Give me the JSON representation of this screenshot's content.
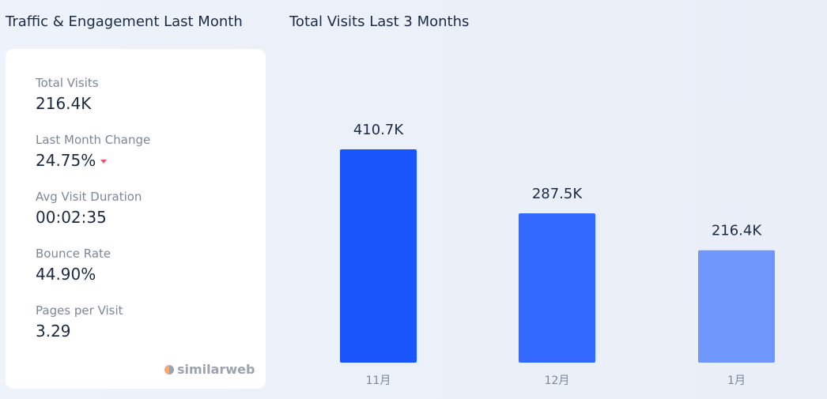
{
  "left_title": "Traffic & Engagement Last Month",
  "right_title": "Total Visits Last 3 Months",
  "metrics": [
    {
      "label": "Total Visits",
      "value": "216.4K"
    },
    {
      "label": "Last Month Change",
      "value": "24.75%"
    },
    {
      "label": "Avg Visit Duration",
      "value": "00:02:35"
    },
    {
      "label": "Bounce Rate",
      "value": "44.90%"
    },
    {
      "label": "Pages per Visit",
      "value": "3.29"
    }
  ],
  "logo": "similarweb",
  "colors": {
    "change_down": "#f0506e"
  },
  "chart_data": {
    "type": "bar",
    "title": "Total Visits Last 3 Months",
    "categories": [
      "11月",
      "12月",
      "1月"
    ],
    "values": [
      410.7,
      287.5,
      216.4
    ],
    "labels": [
      "410.7K",
      "287.5K",
      "216.4K"
    ],
    "colors": [
      "#1a55fb",
      "#3369ff",
      "#6f96fb"
    ],
    "unit": "K",
    "ylim": [
      0,
      410.7
    ],
    "grid": false
  }
}
